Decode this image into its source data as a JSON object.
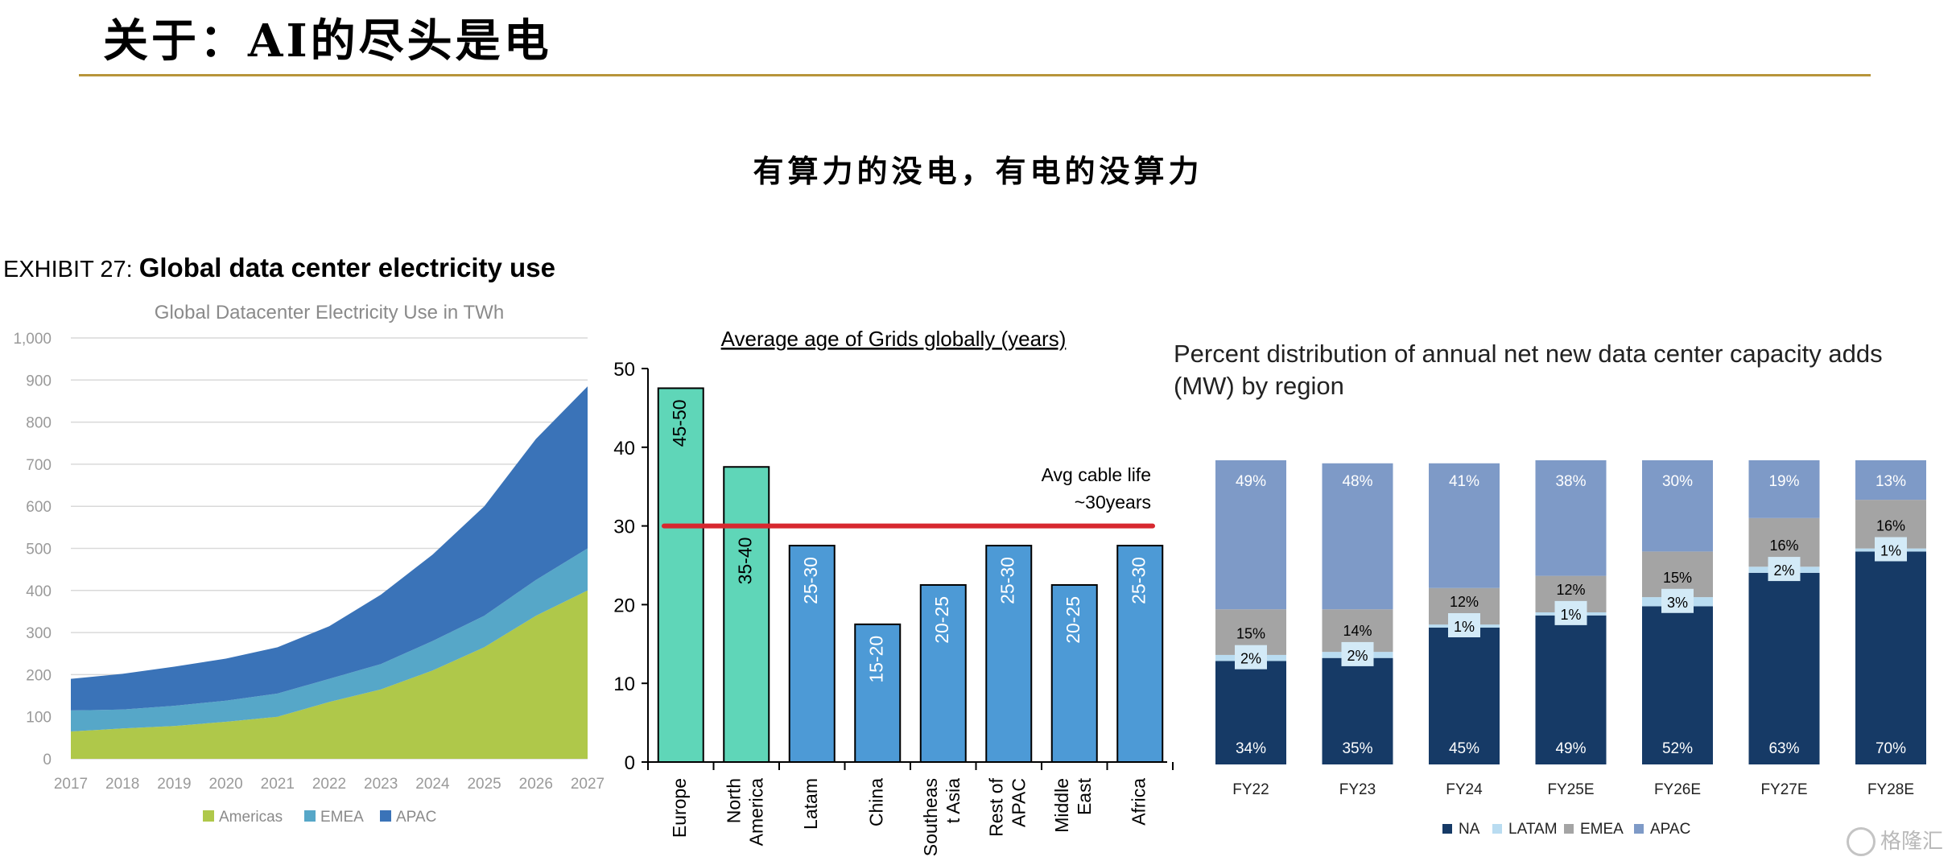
{
  "header": {
    "title": "关于：AI的尽头是电",
    "subtitle": "有算力的没电，有电的没算力"
  },
  "exhibit": {
    "prefix": "EXHIBIT 27:",
    "title": "Global data center electricity use"
  },
  "watermark": {
    "text": "格隆汇"
  },
  "chart_data": [
    {
      "type": "area",
      "title": "Global Datacenter Electricity Use in TWh",
      "stacked": true,
      "x": [
        "2017",
        "2018",
        "2019",
        "2020",
        "2021",
        "2022",
        "2023",
        "2024",
        "2025",
        "2026",
        "2027"
      ],
      "ylim": [
        0,
        1000
      ],
      "yticks": [
        "0",
        "100",
        "200",
        "300",
        "400",
        "500",
        "600",
        "700",
        "800",
        "900",
        "1,000"
      ],
      "grid": true,
      "legend": "bottom",
      "series": [
        {
          "name": "Americas",
          "color": "#afc84a",
          "values": [
            65,
            72,
            78,
            88,
            100,
            135,
            165,
            210,
            265,
            340,
            400
          ]
        },
        {
          "name": "EMEA",
          "color": "#56a7c8",
          "values": [
            50,
            45,
            48,
            50,
            55,
            55,
            60,
            70,
            75,
            85,
            100
          ]
        },
        {
          "name": "APAC",
          "color": "#3a73b8",
          "values": [
            75,
            85,
            93,
            100,
            110,
            125,
            165,
            205,
            260,
            335,
            385
          ]
        }
      ]
    },
    {
      "type": "bar",
      "title": "Average age of Grids globally (years)",
      "categories": [
        "Europe",
        "North America",
        "Latam",
        "China",
        "Southeast Asia",
        "Rest of APAC",
        "Middle East",
        "Africa"
      ],
      "category_lines": [
        [
          "Europe"
        ],
        [
          "North",
          "America"
        ],
        [
          "Latam"
        ],
        [
          "China"
        ],
        [
          "Southeas",
          "t Asia"
        ],
        [
          "Rest of",
          "APAC"
        ],
        [
          "Middle",
          "East"
        ],
        [
          "Africa"
        ]
      ],
      "values": [
        47.5,
        37.5,
        27.5,
        17.5,
        22.5,
        27.5,
        22.5,
        27.5
      ],
      "labels": [
        "45-50",
        "35-40",
        "25-30",
        "15-20",
        "20-25",
        "25-30",
        "20-25",
        "25-30"
      ],
      "colors": [
        "#5fd6b8",
        "#5fd6b8",
        "#4d9ad6",
        "#4d9ad6",
        "#4d9ad6",
        "#4d9ad6",
        "#4d9ad6",
        "#4d9ad6"
      ],
      "ylim": [
        0,
        50
      ],
      "yticks": [
        0,
        10,
        20,
        30,
        40,
        50
      ],
      "reference_line": {
        "value": 30,
        "color": "#d7282f",
        "label_lines": [
          "Avg cable life",
          "~30years"
        ]
      }
    },
    {
      "type": "bar",
      "stacked": true,
      "percent": true,
      "title_lines": [
        "Percent distribution of annual net new data center capacity adds",
        "(MW) by region"
      ],
      "categories": [
        "FY22",
        "FY23",
        "FY24",
        "FY25E",
        "FY26E",
        "FY27E",
        "FY28E"
      ],
      "legend": "bottom",
      "series": [
        {
          "name": "NA",
          "color": "#163a66",
          "values": [
            34,
            35,
            45,
            49,
            52,
            63,
            70
          ]
        },
        {
          "name": "LATAM",
          "color": "#b9dcf1",
          "values": [
            2,
            2,
            1,
            1,
            3,
            2,
            1
          ]
        },
        {
          "name": "EMEA",
          "color": "#a4a4a4",
          "values": [
            15,
            14,
            12,
            12,
            15,
            16,
            16
          ]
        },
        {
          "name": "APAC",
          "color": "#7e9ac7",
          "values": [
            49,
            48,
            41,
            38,
            30,
            19,
            13
          ]
        }
      ]
    }
  ]
}
